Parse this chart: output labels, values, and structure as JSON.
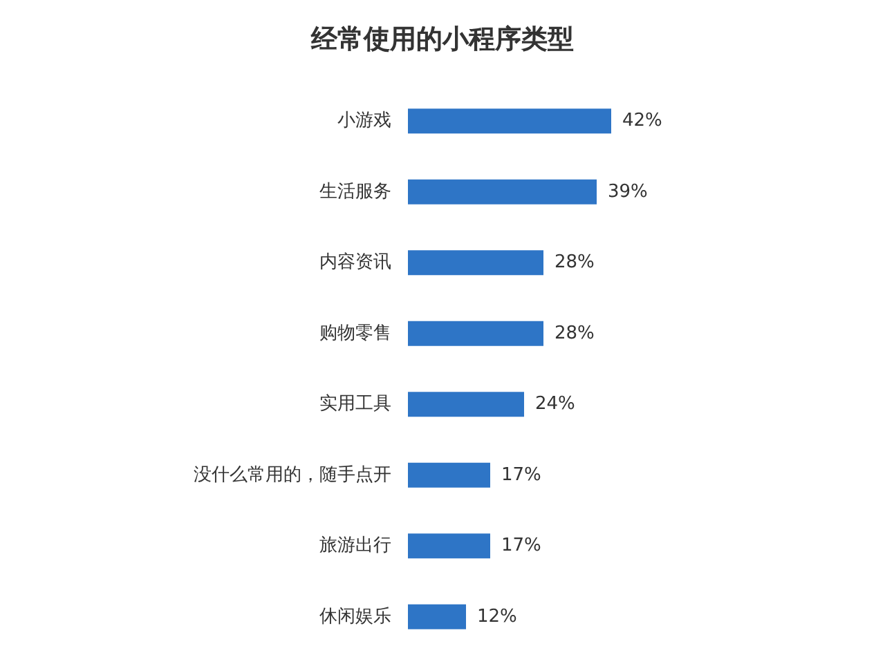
{
  "chart_data": {
    "type": "bar",
    "orientation": "horizontal",
    "title": "经常使用的小程序类型",
    "categories": [
      "小游戏",
      "生活服务",
      "内容资讯",
      "购物零售",
      "实用工具",
      "没什么常用的，随手点开",
      "旅游出行",
      "休闲娱乐"
    ],
    "values": [
      42,
      39,
      28,
      28,
      24,
      17,
      17,
      12
    ],
    "value_labels": [
      "42%",
      "39%",
      "28%",
      "28%",
      "24%",
      "17%",
      "17%",
      "12%"
    ],
    "color": "#2e75c6"
  }
}
